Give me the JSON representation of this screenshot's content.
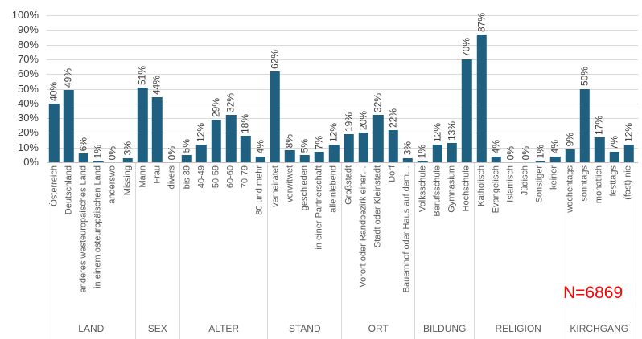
{
  "chart_data": {
    "type": "bar",
    "title": "",
    "xlabel": "",
    "ylabel": "",
    "ylim": [
      0,
      100
    ],
    "y_tick_step": 10,
    "y_tick_suffix": "%",
    "grid": true,
    "legend": "none",
    "bar_color": "#1f5f7f",
    "value_label_suffix": "%",
    "annotation": {
      "text": "N=6869",
      "color": "#ff0000"
    },
    "groups": [
      {
        "label": "LAND",
        "categories": [
          "Österreich",
          "Deutschland",
          "anderes westeuropäisches Land",
          "in einem osteuropäischen Land",
          "anderswo",
          "Missing"
        ],
        "values": [
          40,
          49,
          6,
          1,
          0,
          3
        ]
      },
      {
        "label": "SEX",
        "categories": [
          "Mann",
          "Frau",
          "divers"
        ],
        "values": [
          51,
          44,
          0
        ]
      },
      {
        "label": "ALTER",
        "categories": [
          "bis 39",
          "40-49",
          "50-59",
          "60-60",
          "70-79",
          "80 und mehr"
        ],
        "values": [
          5,
          12,
          29,
          32,
          18,
          4
        ]
      },
      {
        "label": "STAND",
        "categories": [
          "verheiratet",
          "verwitwet",
          "geschieden",
          "in einer Partnerschaft",
          "alleinlebend"
        ],
        "values": [
          62,
          8,
          5,
          7,
          12
        ]
      },
      {
        "label": "ORT",
        "categories": [
          "Großstadt",
          "Vorort oder Randbezirk einer…",
          "Stadt oder Kleinstadt",
          "Dorf",
          "Bauernhof oder Haus auf dem…"
        ],
        "values": [
          19,
          20,
          32,
          22,
          3
        ]
      },
      {
        "label": "BILDUNG",
        "categories": [
          "Volksschule",
          "Berufsschule",
          "Gymnasium",
          "Hochschule"
        ],
        "values": [
          1,
          12,
          13,
          70
        ]
      },
      {
        "label": "RELIGION",
        "categories": [
          "Katholisch",
          "Evangelisch",
          "Islamisch",
          "Jüdisch",
          "Sonstiger",
          "keiner"
        ],
        "values": [
          87,
          4,
          0,
          0,
          1,
          4
        ]
      },
      {
        "label": "KIRCHGANG",
        "categories": [
          "wochentags",
          "sonntags",
          "monatlich",
          "festtags",
          "(fast) nie"
        ],
        "values": [
          9,
          50,
          17,
          7,
          12
        ]
      }
    ]
  }
}
